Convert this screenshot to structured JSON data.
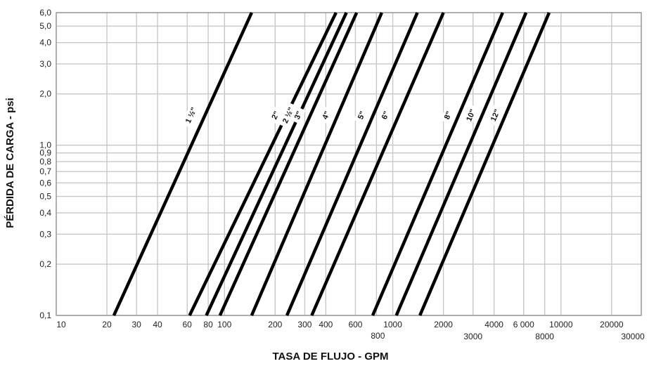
{
  "chart_data": {
    "type": "line",
    "title": "",
    "xlabel": "TASA DE FLUJO - GPM",
    "ylabel": "PÉRDIDA DE CARGA - psi",
    "xscale": "log",
    "yscale": "log",
    "xlim": [
      10,
      30000
    ],
    "ylim": [
      0.1,
      6.0
    ],
    "grid": true,
    "legend": "none",
    "x_ticks": [
      {
        "value": 10,
        "label": "10"
      },
      {
        "value": 20,
        "label": "20"
      },
      {
        "value": 30,
        "label": "30"
      },
      {
        "value": 40,
        "label": "40"
      },
      {
        "value": 60,
        "label": "60"
      },
      {
        "value": 80,
        "label": "80"
      },
      {
        "value": 100,
        "label": "100"
      },
      {
        "value": 200,
        "label": "200"
      },
      {
        "value": 300,
        "label": "300"
      },
      {
        "value": 400,
        "label": "400"
      },
      {
        "value": 600,
        "label": "600"
      },
      {
        "value": 800,
        "label": "800"
      },
      {
        "value": 1000,
        "label": "1000"
      },
      {
        "value": 2000,
        "label": "2000"
      },
      {
        "value": 3000,
        "label": "3000"
      },
      {
        "value": 4000,
        "label": "4000"
      },
      {
        "value": 6000,
        "label": "6 000"
      },
      {
        "value": 8000,
        "label": "8000"
      },
      {
        "value": 10000,
        "label": "10000"
      },
      {
        "value": 20000,
        "label": "20000"
      },
      {
        "value": 30000,
        "label": "30000"
      }
    ],
    "y_ticks": [
      {
        "value": 0.1,
        "label": "0,1"
      },
      {
        "value": 0.2,
        "label": "0,2"
      },
      {
        "value": 0.3,
        "label": "0,3"
      },
      {
        "value": 0.4,
        "label": "0,4"
      },
      {
        "value": 0.5,
        "label": "0,5"
      },
      {
        "value": 0.6,
        "label": "0,6"
      },
      {
        "value": 0.7,
        "label": "0,7"
      },
      {
        "value": 0.8,
        "label": "0,8"
      },
      {
        "value": 0.9,
        "label": "0,9"
      },
      {
        "value": 1.0,
        "label": "1,0"
      },
      {
        "value": 2.0,
        "label": "2,0"
      },
      {
        "value": 3.0,
        "label": "3,0"
      },
      {
        "value": 4.0,
        "label": "4,0"
      },
      {
        "value": 5.0,
        "label": "5,0"
      },
      {
        "value": 6.0,
        "label": "6,0"
      }
    ],
    "series": [
      {
        "name": "1 ½\"",
        "x": [
          22,
          145
        ],
        "y": [
          0.1,
          6.0
        ],
        "label_at": [
          63,
          1.5
        ]
      },
      {
        "name": "2\"",
        "x": [
          62,
          460
        ],
        "y": [
          0.1,
          6.0
        ],
        "label_at": [
          200,
          1.5
        ]
      },
      {
        "name": "2 ½\"",
        "x": [
          78,
          530
        ],
        "y": [
          0.1,
          6.0
        ],
        "label_at": [
          238,
          1.5
        ]
      },
      {
        "name": "3\"",
        "x": [
          94,
          610
        ],
        "y": [
          0.1,
          6.0
        ],
        "label_at": [
          273,
          1.5
        ]
      },
      {
        "name": "4\"",
        "x": [
          145,
          860
        ],
        "y": [
          0.1,
          6.0
        ],
        "label_at": [
          400,
          1.5
        ]
      },
      {
        "name": "5\"",
        "x": [
          235,
          1400
        ],
        "y": [
          0.1,
          6.0
        ],
        "label_at": [
          650,
          1.5
        ]
      },
      {
        "name": "6\"",
        "x": [
          330,
          2000
        ],
        "y": [
          0.1,
          6.0
        ],
        "label_at": [
          900,
          1.5
        ]
      },
      {
        "name": "8\"",
        "x": [
          760,
          4500
        ],
        "y": [
          0.1,
          6.0
        ],
        "label_at": [
          2120,
          1.5
        ]
      },
      {
        "name": "10\"",
        "x": [
          1050,
          6200
        ],
        "y": [
          0.1,
          6.0
        ],
        "label_at": [
          2900,
          1.5
        ]
      },
      {
        "name": "12\"",
        "x": [
          1450,
          8500
        ],
        "y": [
          0.1,
          6.0
        ],
        "label_at": [
          4050,
          1.5
        ]
      }
    ],
    "colors": {
      "line": "#000000",
      "grid": "#c8c8c8",
      "axis": "#999999"
    }
  }
}
